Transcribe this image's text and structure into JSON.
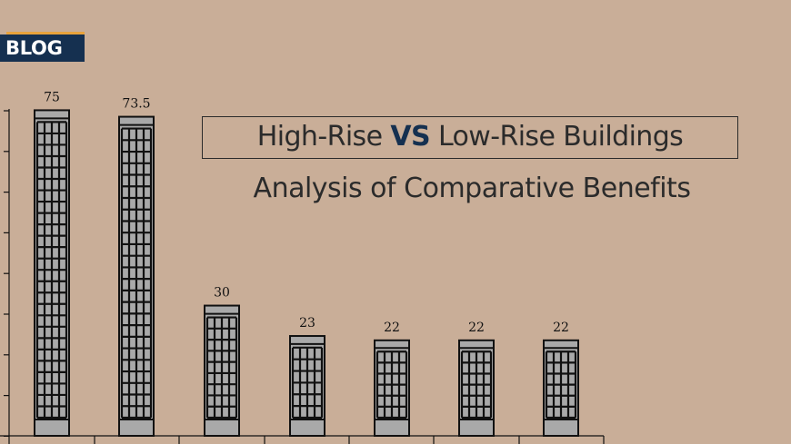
{
  "badge": {
    "label": "BLOG"
  },
  "title": {
    "part1": "High-Rise ",
    "vs": "VS",
    "part2": " Low-Rise Buildings",
    "subtitle": "Analysis of Comparative Benefits"
  },
  "colors": {
    "background": "#c9ae98",
    "badge": "#153050",
    "badge_accent": "#e8a33c",
    "building_fill": "#a9a9a9",
    "building_outline": "#111111"
  },
  "chart_data": {
    "type": "bar",
    "title": "",
    "xlabel": "",
    "ylabel": "",
    "ylim": [
      0,
      80
    ],
    "grid": false,
    "categories": [
      "",
      "",
      "",
      "",
      "",
      "",
      ""
    ],
    "values": [
      75,
      73.5,
      30,
      23,
      22,
      22,
      22
    ],
    "labels": [
      "75",
      "73.5",
      "30",
      "23",
      "22",
      "22",
      "22"
    ]
  }
}
